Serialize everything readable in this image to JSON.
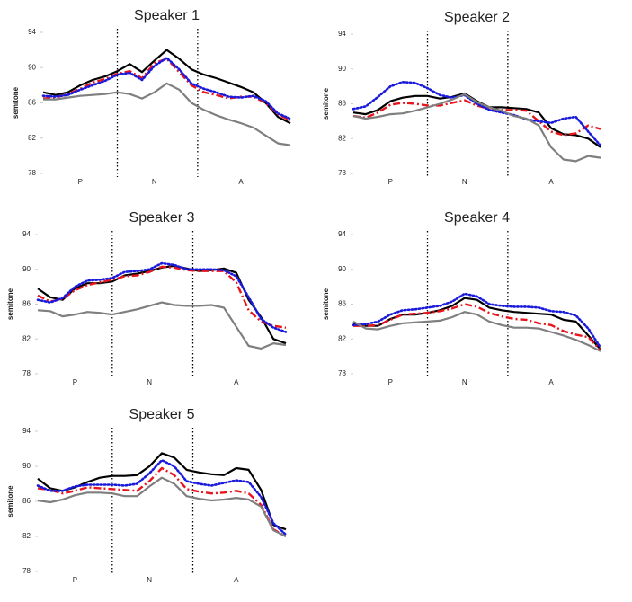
{
  "chart_data": [
    {
      "type": "line",
      "title": "Speaker 1",
      "ylabel": "semitone",
      "categories": [
        null,
        null,
        null,
        "P",
        null,
        null,
        null,
        null,
        null,
        "N",
        null,
        null,
        null,
        null,
        null,
        null,
        "A",
        null,
        null,
        null,
        null
      ],
      "ylim": [
        78,
        94
      ],
      "yticks": [
        78,
        82,
        86,
        90,
        94
      ],
      "series": [
        {
          "color": "#000000",
          "style": "solid",
          "values": [
            87.2,
            86.9,
            87.2,
            88.0,
            88.6,
            89.0,
            89.6,
            90.4,
            89.5,
            90.8,
            92.0,
            91.0,
            89.8,
            89.2,
            88.8,
            88.3,
            87.8,
            87.2,
            86.0,
            84.4,
            83.7
          ]
        },
        {
          "color": "#e8141c",
          "style": "dashdot",
          "values": [
            86.5,
            86.6,
            87.0,
            87.6,
            88.3,
            88.7,
            89.3,
            89.6,
            88.8,
            90.5,
            91.0,
            89.5,
            88.0,
            87.2,
            86.9,
            86.5,
            86.7,
            86.7,
            86.0,
            84.7,
            84.0
          ]
        },
        {
          "color": "#1a1adc",
          "style": "dotted",
          "values": [
            86.8,
            86.7,
            86.9,
            87.5,
            88.0,
            88.5,
            89.2,
            89.4,
            88.6,
            90.2,
            91.1,
            89.8,
            88.2,
            87.6,
            87.2,
            86.7,
            86.6,
            86.8,
            86.2,
            84.8,
            84.2
          ]
        },
        {
          "color": "#7f7f7f",
          "style": "solid",
          "values": [
            86.4,
            86.4,
            86.6,
            86.8,
            86.9,
            87.0,
            87.2,
            87.0,
            86.5,
            87.2,
            88.2,
            87.5,
            86.0,
            85.2,
            84.6,
            84.1,
            83.7,
            83.2,
            82.3,
            81.4,
            81.2
          ]
        }
      ]
    },
    {
      "type": "line",
      "title": "Speaker 2",
      "ylabel": "semitone",
      "categories": [
        null,
        null,
        null,
        "P",
        null,
        null,
        null,
        null,
        null,
        "N",
        null,
        null,
        null,
        null,
        null,
        null,
        "A",
        null,
        null,
        null,
        null
      ],
      "ylim": [
        78,
        94
      ],
      "yticks": [
        78,
        82,
        86,
        90,
        94
      ],
      "series": [
        {
          "color": "#000000",
          "style": "solid",
          "values": [
            85.0,
            84.8,
            85.3,
            86.3,
            86.7,
            86.9,
            86.9,
            86.6,
            86.8,
            87.2,
            86.3,
            85.6,
            85.6,
            85.5,
            85.4,
            85.0,
            83.2,
            82.5,
            82.4,
            82.0,
            81.0
          ]
        },
        {
          "color": "#e8141c",
          "style": "dashdot",
          "values": [
            84.6,
            84.4,
            85.0,
            85.9,
            86.1,
            86.0,
            85.8,
            85.8,
            86.1,
            86.4,
            85.8,
            85.4,
            85.3,
            85.3,
            85.2,
            84.0,
            82.8,
            82.4,
            82.6,
            83.5,
            83.1
          ]
        },
        {
          "color": "#1a1adc",
          "style": "dotted",
          "values": [
            85.4,
            85.7,
            86.8,
            88.0,
            88.5,
            88.4,
            87.8,
            87.0,
            86.7,
            87.0,
            86.0,
            85.3,
            85.0,
            84.7,
            84.2,
            84.0,
            83.8,
            84.3,
            84.5,
            82.8,
            81.2
          ]
        },
        {
          "color": "#7f7f7f",
          "style": "solid",
          "values": [
            84.6,
            84.3,
            84.5,
            84.8,
            84.9,
            85.2,
            85.6,
            86.0,
            86.5,
            87.1,
            86.2,
            85.6,
            85.2,
            84.6,
            84.3,
            83.5,
            81.0,
            79.6,
            79.4,
            80.0,
            79.8
          ]
        }
      ]
    },
    {
      "type": "line",
      "title": "Speaker 3",
      "ylabel": "semitone",
      "categories": [
        null,
        null,
        null,
        "P",
        null,
        null,
        null,
        null,
        null,
        "N",
        null,
        null,
        null,
        null,
        null,
        null,
        "A",
        null,
        null,
        null,
        null
      ],
      "ylim": [
        78,
        94
      ],
      "yticks": [
        78,
        82,
        86,
        90,
        94
      ],
      "series": [
        {
          "color": "#000000",
          "style": "solid",
          "values": [
            87.8,
            86.8,
            86.5,
            87.8,
            88.4,
            88.4,
            88.6,
            89.3,
            89.5,
            89.8,
            90.2,
            90.4,
            90.1,
            89.8,
            89.9,
            90.1,
            89.6,
            86.5,
            84.5,
            82.0,
            81.5
          ]
        },
        {
          "color": "#e8141c",
          "style": "dashdot",
          "values": [
            87.0,
            86.3,
            86.6,
            87.6,
            88.2,
            88.5,
            88.8,
            89.2,
            89.3,
            89.7,
            90.3,
            90.2,
            89.9,
            89.8,
            89.8,
            89.8,
            88.5,
            85.3,
            84.0,
            83.5,
            83.3
          ]
        },
        {
          "color": "#1a1adc",
          "style": "dotted",
          "values": [
            86.5,
            86.2,
            86.7,
            88.0,
            88.7,
            88.8,
            89.0,
            89.7,
            89.8,
            90.0,
            90.7,
            90.5,
            90.0,
            90.0,
            90.0,
            89.9,
            89.2,
            86.8,
            84.3,
            83.3,
            82.8
          ]
        },
        {
          "color": "#7f7f7f",
          "style": "solid",
          "values": [
            85.3,
            85.2,
            84.6,
            84.8,
            85.1,
            85.0,
            84.8,
            85.1,
            85.4,
            85.8,
            86.2,
            85.9,
            85.8,
            85.8,
            85.9,
            85.6,
            83.4,
            81.2,
            80.9,
            81.5,
            81.3
          ]
        }
      ]
    },
    {
      "type": "line",
      "title": "Speaker 4",
      "ylabel": "semitone",
      "categories": [
        null,
        null,
        null,
        "P",
        null,
        null,
        null,
        null,
        null,
        "N",
        null,
        null,
        null,
        null,
        null,
        null,
        "A",
        null,
        null,
        null,
        null
      ],
      "ylim": [
        78,
        94
      ],
      "yticks": [
        78,
        82,
        86,
        90,
        94
      ],
      "series": [
        {
          "color": "#000000",
          "style": "solid",
          "values": [
            83.8,
            83.5,
            83.5,
            84.3,
            84.8,
            84.8,
            85.0,
            85.3,
            85.8,
            86.7,
            86.5,
            85.6,
            85.3,
            85.1,
            85.0,
            84.9,
            84.8,
            84.2,
            84.0,
            82.4,
            80.8
          ]
        },
        {
          "color": "#e8141c",
          "style": "dashdot",
          "values": [
            83.5,
            83.5,
            83.6,
            84.2,
            84.8,
            84.9,
            85.0,
            85.2,
            85.5,
            86.0,
            85.7,
            85.0,
            84.6,
            84.3,
            84.2,
            83.8,
            83.6,
            82.9,
            82.5,
            82.2,
            80.7
          ]
        },
        {
          "color": "#1a1adc",
          "style": "dotted",
          "values": [
            83.6,
            83.7,
            84.0,
            84.8,
            85.3,
            85.4,
            85.6,
            85.8,
            86.3,
            87.2,
            86.9,
            86.0,
            85.8,
            85.7,
            85.7,
            85.6,
            85.2,
            85.1,
            84.7,
            83.2,
            81.0
          ]
        },
        {
          "color": "#7f7f7f",
          "style": "solid",
          "values": [
            84.0,
            83.2,
            83.1,
            83.5,
            83.8,
            83.9,
            84.0,
            84.1,
            84.5,
            85.1,
            84.8,
            84.0,
            83.6,
            83.3,
            83.3,
            83.2,
            82.8,
            82.4,
            81.9,
            81.3,
            80.6
          ]
        }
      ]
    },
    {
      "type": "line",
      "title": "Speaker 5",
      "ylabel": "semitone",
      "categories": [
        null,
        null,
        null,
        "P",
        null,
        null,
        null,
        null,
        null,
        "N",
        null,
        null,
        null,
        null,
        null,
        null,
        "A",
        null,
        null,
        null,
        null
      ],
      "ylim": [
        78,
        94
      ],
      "yticks": [
        78,
        82,
        86,
        90,
        94
      ],
      "series": [
        {
          "color": "#000000",
          "style": "solid",
          "values": [
            88.6,
            87.5,
            87.2,
            87.6,
            88.2,
            88.7,
            88.9,
            88.9,
            89.0,
            90.0,
            91.5,
            91.0,
            89.6,
            89.3,
            89.1,
            89.0,
            89.8,
            89.6,
            87.3,
            83.3,
            82.8
          ]
        },
        {
          "color": "#e8141c",
          "style": "dashdot",
          "values": [
            87.5,
            87.3,
            86.9,
            87.2,
            87.6,
            87.5,
            87.4,
            87.3,
            87.2,
            88.3,
            89.8,
            89.0,
            87.4,
            87.1,
            86.9,
            87.0,
            87.2,
            86.9,
            85.6,
            82.8,
            82.0
          ]
        },
        {
          "color": "#1a1adc",
          "style": "dotted",
          "values": [
            87.8,
            87.2,
            87.2,
            87.7,
            87.9,
            87.9,
            87.9,
            87.8,
            88.0,
            89.2,
            90.7,
            90.0,
            88.3,
            88.0,
            87.8,
            88.1,
            88.4,
            88.2,
            86.5,
            83.5,
            82.2
          ]
        },
        {
          "color": "#7f7f7f",
          "style": "solid",
          "values": [
            86.1,
            85.9,
            86.2,
            86.7,
            87.0,
            87.0,
            86.9,
            86.6,
            86.6,
            87.7,
            88.7,
            88.0,
            86.6,
            86.3,
            86.1,
            86.2,
            86.4,
            86.2,
            85.4,
            82.7,
            82.0
          ]
        }
      ]
    }
  ]
}
